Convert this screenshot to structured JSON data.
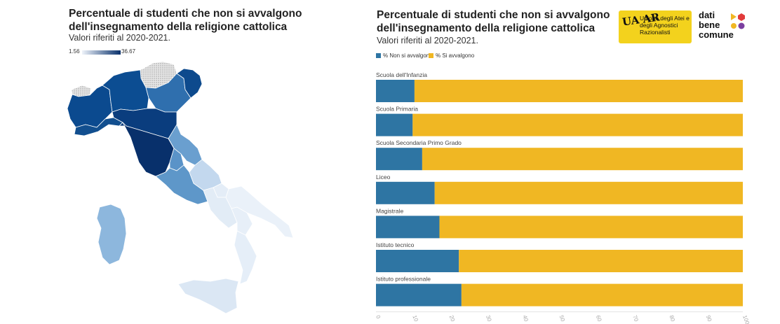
{
  "map": {
    "title": "Percentuale di studenti che non si avvalgono dell'insegnamento della religione cattolica",
    "subtitle": "Valori riferiti al 2020-2021.",
    "legend_min": "1.56",
    "legend_max": "36.67"
  },
  "logos": {
    "uaar_mark": "UA AR",
    "uaar_text": "Unione degli Atei e degli Agnostici Razionalisti",
    "datibenecomune": [
      "dati",
      "bene",
      "comune"
    ]
  },
  "chart_data": {
    "type": "bar",
    "orientation": "horizontal",
    "stacked": true,
    "title": "Percentuale di studenti che non si avvalgono dell'insegnamento della religione cattolica",
    "subtitle": "Valori riferiti al 2020-2021.",
    "categories": [
      "Scuola dell'Infanzia",
      "Scuola Primaria",
      "Scuola Secondaria Primo Grado",
      "Liceo",
      "Magistrale",
      "Istituto tecnico",
      "Istituto professionale"
    ],
    "series": [
      {
        "name": "% Non si avvalgono",
        "color": "#2e75a3",
        "values": [
          10.5,
          10.0,
          12.6,
          16.0,
          17.3,
          22.6,
          23.3
        ]
      },
      {
        "name": "% Si avvalgono",
        "color": "#f0b723",
        "values": [
          89.5,
          90.0,
          87.4,
          84.0,
          82.7,
          77.4,
          76.7
        ]
      }
    ],
    "xlim": [
      0,
      100
    ],
    "xticks": [
      "0",
      "10",
      "20",
      "30",
      "40",
      "50",
      "60",
      "70",
      "80",
      "90",
      "100"
    ],
    "legend_position": "top-left",
    "grid": false
  }
}
